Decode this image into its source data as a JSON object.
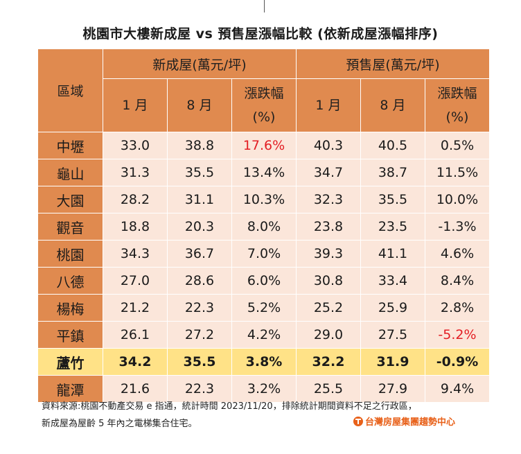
{
  "title": "桃園市大樓新成屋 vs 預售屋漲幅比較 (依新成屋漲幅排序)",
  "chart_data": {
    "type": "table",
    "title": "桃園市大樓新成屋 vs 預售屋漲幅比較 (依新成屋漲幅排序)",
    "header": {
      "region": "區域",
      "group_new": "新成屋(萬元/坪)",
      "group_presale": "預售屋(萬元/坪)",
      "jan": "1 月",
      "aug": "8 月",
      "change_line1": "漲跌幅",
      "change_line2": "(%)"
    },
    "rows": [
      {
        "region": "中壢",
        "new_jan": "33.0",
        "new_aug": "38.8",
        "new_change": "17.6%",
        "pre_jan": "40.3",
        "pre_aug": "40.5",
        "pre_change": "0.5%"
      },
      {
        "region": "龜山",
        "new_jan": "31.3",
        "new_aug": "35.5",
        "new_change": "13.4%",
        "pre_jan": "34.7",
        "pre_aug": "38.7",
        "pre_change": "11.5%"
      },
      {
        "region": "大園",
        "new_jan": "28.2",
        "new_aug": "31.1",
        "new_change": "10.3%",
        "pre_jan": "32.3",
        "pre_aug": "35.5",
        "pre_change": "10.0%"
      },
      {
        "region": "觀音",
        "new_jan": "18.8",
        "new_aug": "20.3",
        "new_change": "8.0%",
        "pre_jan": "23.8",
        "pre_aug": "23.5",
        "pre_change": "-1.3%"
      },
      {
        "region": "桃園",
        "new_jan": "34.3",
        "new_aug": "36.7",
        "new_change": "7.0%",
        "pre_jan": "39.3",
        "pre_aug": "41.1",
        "pre_change": "4.6%"
      },
      {
        "region": "八德",
        "new_jan": "27.0",
        "new_aug": "28.6",
        "new_change": "6.0%",
        "pre_jan": "30.8",
        "pre_aug": "33.4",
        "pre_change": "8.4%"
      },
      {
        "region": "楊梅",
        "new_jan": "21.2",
        "new_aug": "22.3",
        "new_change": "5.2%",
        "pre_jan": "25.2",
        "pre_aug": "25.9",
        "pre_change": "2.8%"
      },
      {
        "region": "平鎮",
        "new_jan": "26.1",
        "new_aug": "27.2",
        "new_change": "4.2%",
        "pre_jan": "29.0",
        "pre_aug": "27.5",
        "pre_change": "-5.2%"
      },
      {
        "region": "蘆竹",
        "new_jan": "34.2",
        "new_aug": "35.5",
        "new_change": "3.8%",
        "pre_jan": "32.2",
        "pre_aug": "31.9",
        "pre_change": "-0.9%"
      },
      {
        "region": "龍潭",
        "new_jan": "21.6",
        "new_aug": "22.3",
        "new_change": "3.2%",
        "pre_jan": "25.5",
        "pre_aug": "27.9",
        "pre_change": "9.4%"
      }
    ],
    "highlighted_region": "蘆竹",
    "red_values": [
      "17.6%",
      "-5.2%"
    ]
  },
  "footer": {
    "line1": "資料來源:桃園不動產交易 e 指通，統計時間 2023/11/20，排除統計期間資料不足之行政區，",
    "line2": "新成屋為屋齡 5 年內之電梯集合住宅。",
    "brand": "台灣房屋集團趨勢中心"
  },
  "colors": {
    "header_orange": "#e08a4f",
    "cell_light": "#fbe6da",
    "highlight_yellow": "#ffe287",
    "red_text": "#e31e24",
    "brand_orange": "#e8611a"
  }
}
